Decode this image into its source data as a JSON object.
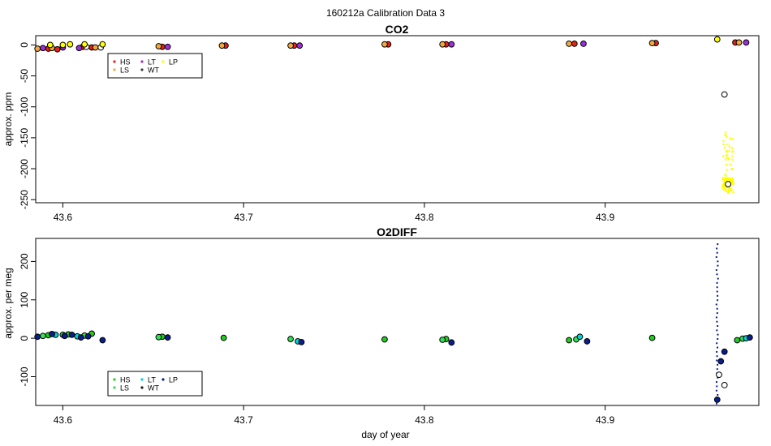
{
  "figure": {
    "title": "160212a   Calibration Data 3",
    "xlabel": "day of year"
  },
  "chart_data": [
    {
      "type": "scatter",
      "title": "CO2",
      "xlabel": "",
      "ylabel": "approx. ppm",
      "xlim": [
        43.585,
        43.985
      ],
      "ylim": [
        -255,
        15
      ],
      "xticks": [
        43.6,
        43.7,
        43.8,
        43.9
      ],
      "yticks": [
        0,
        -50,
        -100,
        -150,
        -200,
        -250
      ],
      "grid": false,
      "legend": {
        "position": "upper-left",
        "entries": [
          {
            "label": "HS",
            "color": "#e8221a"
          },
          {
            "label": "LT",
            "color": "#9b30d9"
          },
          {
            "label": "LP",
            "color": "#ffff00"
          },
          {
            "label": "LS",
            "color": "#f2a93b"
          },
          {
            "label": "WT",
            "color": "#3a3a3a"
          }
        ]
      },
      "series": [
        {
          "name": "HS",
          "color": "#e8221a",
          "x": [
            43.592,
            43.597,
            43.611,
            43.616,
            43.655,
            43.69,
            43.728,
            43.78,
            43.812,
            43.883,
            43.928,
            43.972
          ],
          "y": [
            -6,
            -7,
            -3,
            -4,
            -3,
            -1,
            -1,
            1,
            1,
            2,
            3,
            4
          ]
        },
        {
          "name": "LS",
          "color": "#f2a93b",
          "x": [
            43.586,
            43.594,
            43.618,
            43.653,
            43.688,
            43.726,
            43.778,
            43.81,
            43.88,
            43.926,
            43.974
          ],
          "y": [
            -6,
            -5,
            -4,
            -2,
            -1,
            -1,
            1,
            1,
            2,
            3,
            4
          ]
        },
        {
          "name": "LT",
          "color": "#9b30d9",
          "x": [
            43.589,
            43.6,
            43.609,
            43.658,
            43.731,
            43.815,
            43.888,
            43.978
          ],
          "y": [
            -5,
            -4,
            -5,
            -3,
            -1,
            1,
            2,
            4
          ]
        },
        {
          "name": "WT",
          "color": "#3a3a3a",
          "x": [
            43.613,
            43.621,
            43.966,
            43.968
          ],
          "y": [
            -3,
            -4,
            -80,
            -225
          ]
        },
        {
          "name": "LP",
          "color": "#ffff00",
          "x": [
            43.593,
            43.6,
            43.604,
            43.612,
            43.622,
            43.962
          ],
          "y": [
            0,
            0,
            1,
            1,
            1,
            9
          ]
        }
      ],
      "annotations": [
        {
          "label": "yellow noisy trace",
          "x_range": [
            43.965,
            43.971
          ],
          "y_range": [
            -240,
            -140
          ]
        }
      ]
    },
    {
      "type": "scatter",
      "title": "O2DIFF",
      "xlabel": "day of year",
      "ylabel": "approx. per meg",
      "xlim": [
        43.585,
        43.985
      ],
      "ylim": [
        -175,
        260
      ],
      "xticks": [
        43.6,
        43.7,
        43.8,
        43.9
      ],
      "yticks": [
        200,
        100,
        0,
        -100
      ],
      "grid": false,
      "legend": {
        "position": "lower-left",
        "entries": [
          {
            "label": "HS",
            "color": "#22cc22"
          },
          {
            "label": "LT",
            "color": "#00d4d4"
          },
          {
            "label": "LP",
            "color": "#0a1e8c"
          },
          {
            "label": "LS",
            "color": "#33dd55"
          },
          {
            "label": "WT",
            "color": "#1a1a1a"
          }
        ]
      },
      "series": [
        {
          "name": "HS",
          "color": "#22cc22",
          "x": [
            43.592,
            43.603,
            43.616,
            43.655,
            43.689,
            43.778,
            43.812,
            43.88,
            43.926,
            43.973
          ],
          "y": [
            8,
            10,
            12,
            4,
            1,
            -3,
            -2,
            -5,
            1,
            -5
          ]
        },
        {
          "name": "LS",
          "color": "#33dd55",
          "x": [
            43.589,
            43.6,
            43.612,
            43.653,
            43.726,
            43.81,
            43.884,
            43.976
          ],
          "y": [
            6,
            9,
            7,
            3,
            -2,
            -4,
            -3,
            -1
          ]
        },
        {
          "name": "LT",
          "color": "#00d4d4",
          "x": [
            43.596,
            43.608,
            43.73,
            43.886,
            43.978
          ],
          "y": [
            9,
            5,
            -8,
            4,
            0
          ]
        },
        {
          "name": "WT",
          "color": "#1a1a1a",
          "x": [
            43.963,
            43.966
          ],
          "y": [
            -95,
            -122
          ]
        },
        {
          "name": "LP",
          "color": "#0a1e8c",
          "x": [
            43.586,
            43.594,
            43.601,
            43.605,
            43.61,
            43.614,
            43.622,
            43.658,
            43.732,
            43.815,
            43.89,
            43.962,
            43.964,
            43.966,
            43.98
          ],
          "y": [
            4,
            11,
            6,
            9,
            2,
            5,
            -5,
            2,
            -10,
            -11,
            -8,
            -160,
            -60,
            -35,
            2
          ]
        }
      ],
      "annotations": [
        {
          "label": "navy spike",
          "x": 43.962,
          "y_range": [
            -170,
            245
          ]
        }
      ]
    }
  ]
}
